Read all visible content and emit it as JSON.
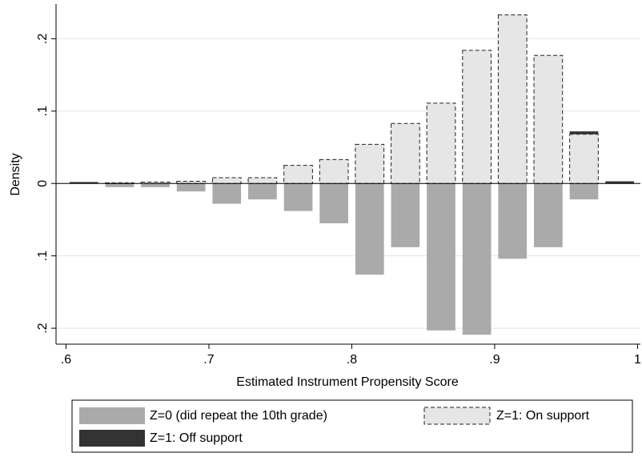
{
  "chart_data": {
    "type": "histogram",
    "x_label": "Estimated Instrument Propensity Score",
    "y_label": "Density",
    "bins": [
      0.6,
      0.625,
      0.65,
      0.675,
      0.7,
      0.725,
      0.75,
      0.775,
      0.8,
      0.825,
      0.85,
      0.875,
      0.9,
      0.925,
      0.95,
      0.975,
      1.0
    ],
    "series": [
      {
        "name": "Z=0 (did repeat the 10th grade)",
        "color": "#aaaaaa",
        "values": [
          0,
          -0.005,
          -0.005,
          -0.011,
          -0.028,
          -0.022,
          -0.038,
          -0.055,
          -0.126,
          -0.088,
          -0.203,
          -0.209,
          -0.104,
          -0.088,
          -0.022,
          0
        ]
      },
      {
        "name": "Z=1: On support",
        "color": "#e6e6e6",
        "dashed": true,
        "values": [
          0,
          0.001,
          0.002,
          0.003,
          0.008,
          0.008,
          0.025,
          0.033,
          0.054,
          0.083,
          0.111,
          0.184,
          0.233,
          0.177,
          0.068,
          0
        ]
      },
      {
        "name": "Z=1: Off support",
        "color": "#333333",
        "stack_on": 1,
        "values": [
          0.002,
          0,
          0,
          0,
          0,
          0,
          0,
          0,
          0,
          0,
          0,
          0,
          0,
          0,
          0.004,
          0.003
        ]
      }
    ],
    "xlim": [
      0.593,
      1.002
    ],
    "xticks": [
      {
        "value": 0.6,
        "label": ".6"
      },
      {
        "value": 0.7,
        "label": ".7"
      },
      {
        "value": 0.8,
        "label": ".8"
      },
      {
        "value": 0.9,
        "label": ".9"
      },
      1
    ],
    "ylim": [
      -0.222,
      0.248
    ],
    "yticks": [
      {
        "value": 0.2,
        "label": ".2"
      },
      {
        "value": 0.1,
        "label": ".1"
      },
      0,
      {
        "value": -0.1,
        "label": ".1"
      },
      {
        "value": -0.2,
        "label": ".2"
      }
    ],
    "grid": true
  }
}
